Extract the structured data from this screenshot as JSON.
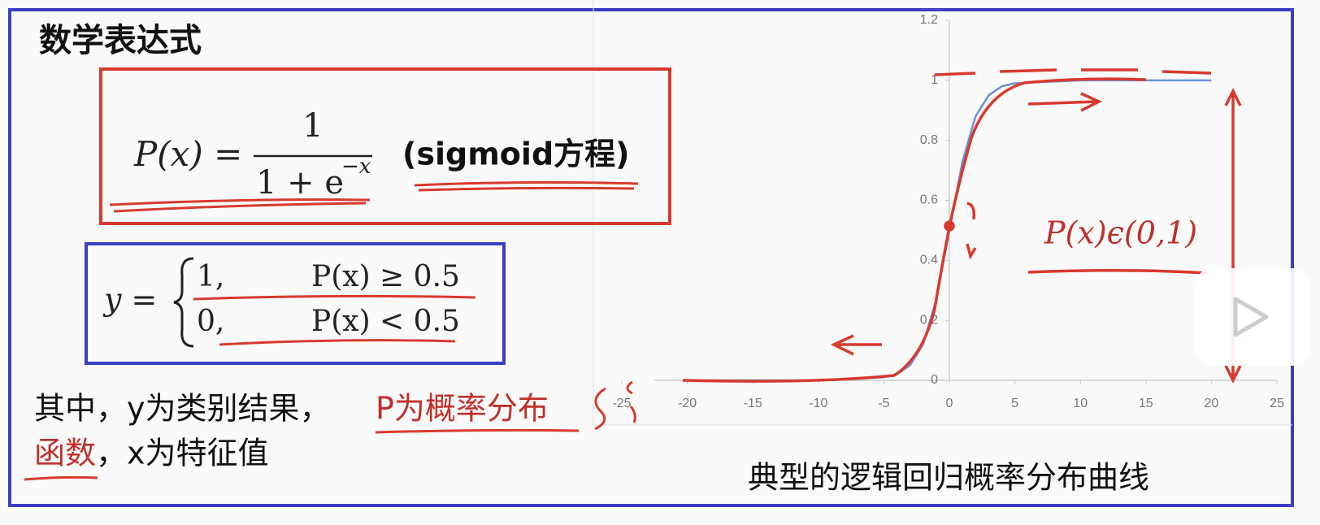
{
  "heading": "数学表达式",
  "formula": {
    "lhs": "P(x) =",
    "numerator": "1",
    "denominator": "1 + e",
    "exponent": "−x",
    "name": "(sigmoid方程)"
  },
  "piecewise": {
    "lhs": "y =",
    "cases": [
      {
        "value": "1,",
        "condition": "P(x) ≥ 0.5"
      },
      {
        "value": "0,",
        "condition": "P(x) < 0.5"
      }
    ]
  },
  "description": {
    "prefix": "其中，y为类别结果，",
    "highlight": [
      "P为概率分布",
      "函数"
    ],
    "suffix": "，x为特征值"
  },
  "caption": "典型的逻辑回归概率分布曲线",
  "annotation": "P(x)ϵ(0,1)",
  "chart_data": {
    "type": "line",
    "x": [
      -20,
      -15,
      -10,
      -5,
      -4,
      -3,
      -2,
      -1,
      0,
      1,
      2,
      3,
      4,
      5,
      10,
      15,
      20
    ],
    "series": [
      {
        "color": "#6b93d6",
        "values": [
          0,
          0,
          0,
          0.01,
          0.02,
          0.05,
          0.12,
          0.27,
          0.5,
          0.73,
          0.88,
          0.95,
          0.98,
          0.99,
          1,
          1,
          1
        ]
      }
    ],
    "xlim": [
      -25,
      25
    ],
    "ylim": [
      0,
      1.2
    ],
    "xticks": [
      -25,
      -20,
      -15,
      -10,
      -5,
      0,
      5,
      10,
      15,
      20,
      25
    ],
    "yticks": [
      0,
      0.2,
      0.4,
      0.6,
      0.8,
      1,
      1.2
    ]
  }
}
